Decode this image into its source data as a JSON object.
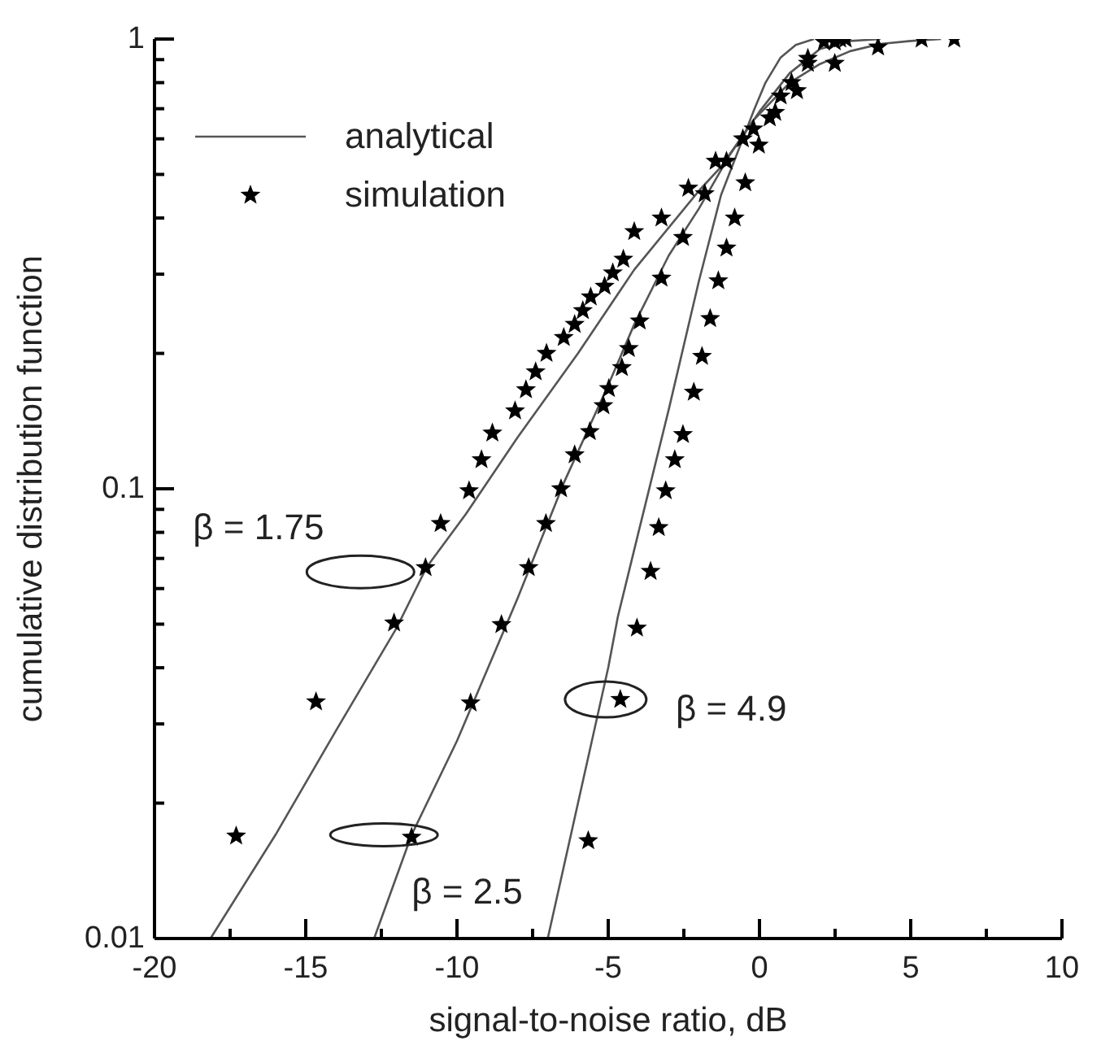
{
  "chart_data": {
    "type": "line",
    "xlabel": "signal-to-noise ratio, dB",
    "ylabel": "cumulative distribution function",
    "xlim": [
      -20,
      10
    ],
    "xticks": [
      -20,
      {
        "value": -17.5,
        "label": null
      },
      -15,
      {
        "value": -12.5,
        "label": null
      },
      -10,
      {
        "value": -7.5,
        "label": null
      },
      -5,
      {
        "value": -2.5,
        "label": null
      },
      0,
      {
        "value": 2.5,
        "label": null
      },
      5,
      {
        "value": 7.5,
        "label": null
      },
      10
    ],
    "ylim": [
      0.01,
      1
    ],
    "log": "y",
    "yticks": [
      0.01,
      {
        "value": 0.02,
        "label": null
      },
      {
        "value": 0.03,
        "label": null
      },
      {
        "value": 0.04,
        "label": null
      },
      {
        "value": 0.05,
        "label": null
      },
      {
        "value": 0.06,
        "label": null
      },
      {
        "value": 0.07,
        "label": null
      },
      {
        "value": 0.08,
        "label": null
      },
      {
        "value": 0.09,
        "label": null
      },
      0.1,
      {
        "value": 0.2,
        "label": null
      },
      {
        "value": 0.3,
        "label": null
      },
      {
        "value": 0.4,
        "label": null
      },
      {
        "value": 0.5,
        "label": null
      },
      {
        "value": 0.6,
        "label": null
      },
      {
        "value": 0.7,
        "label": null
      },
      {
        "value": 0.8,
        "label": null
      },
      {
        "value": 0.9,
        "label": null
      },
      1
    ],
    "grid": false,
    "legend": "top left",
    "annotations": [
      {
        "text": "β = 1.75",
        "x": -11.04,
        "y": 0.067
      },
      {
        "text": "β = 2.5",
        "x": -11.5,
        "y": 0.017
      },
      {
        "text": "β = 4.9",
        "x": -4.6,
        "y": 0.034
      }
    ],
    "series": [
      {
        "name": "analytical",
        "color": "#555555",
        "line_style": "solid",
        "x": [
          -18.15,
          -16,
          -14,
          -12,
          -11,
          -9.7,
          -8,
          -6,
          -4.14,
          -2,
          -1.27,
          -0.2,
          1,
          2,
          3,
          4,
          5,
          6
        ],
        "values": [
          0.01,
          0.017,
          0.029,
          0.049,
          0.067,
          0.088,
          0.13,
          0.2,
          0.307,
          0.46,
          0.52,
          0.66,
          0.8,
          0.88,
          0.94,
          0.975,
          0.99,
          1
        ]
      },
      {
        "color": "#555555",
        "line_style": "solid",
        "x": [
          -12.74,
          -11.5,
          -10,
          -8,
          -6.47,
          -5,
          -4.14,
          -3,
          -2,
          -1,
          0,
          1,
          2,
          3,
          4
        ],
        "values": [
          0.01,
          0.017,
          0.0275,
          0.057,
          0.103,
          0.17,
          0.232,
          0.33,
          0.42,
          0.55,
          0.69,
          0.84,
          0.95,
          0.99,
          1
        ]
      },
      {
        "color": "#555555",
        "line_style": "solid",
        "x": [
          -7,
          -6,
          -5,
          -4.68,
          -4,
          -3,
          -2,
          -1.27,
          -0.2,
          0.2,
          0.7,
          1.2,
          1.8
        ],
        "values": [
          0.01,
          0.02,
          0.04,
          0.052,
          0.08,
          0.15,
          0.29,
          0.45,
          0.69,
          0.8,
          0.91,
          0.97,
          1
        ]
      },
      {
        "name": "simulation",
        "type": "scatter",
        "marker": "star",
        "color": "#000000",
        "x": [
          -17.3,
          -14.66,
          -12.08,
          -11.04,
          -10.54,
          -9.6,
          -9.19,
          -8.83,
          -8.08,
          -7.72,
          -7.4,
          -7.04,
          -6.47,
          -6.11,
          -5.84,
          -5.58,
          -5.12,
          -4.85,
          -4.5,
          -4.14,
          -3.24,
          -2.35,
          -1.45,
          -0.55,
          0.34,
          1.24,
          2.49,
          3.92,
          5.36,
          6.44
        ],
        "values": [
          0.0169,
          0.0336,
          0.0503,
          0.0668,
          0.0837,
          0.099,
          0.116,
          0.133,
          0.149,
          0.166,
          0.182,
          0.2,
          0.217,
          0.232,
          0.249,
          0.267,
          0.282,
          0.302,
          0.324,
          0.373,
          0.4,
          0.466,
          0.535,
          0.6,
          0.668,
          0.768,
          0.883,
          0.96,
          1,
          1
        ]
      },
      {
        "type": "scatter",
        "marker": "star",
        "color": "#000000",
        "x": [
          -11.5,
          -9.55,
          -8.53,
          -7.63,
          -7.06,
          -6.56,
          -6.11,
          -5.61,
          -5.16,
          -4.98,
          -4.55,
          -4.32,
          -3.96,
          -3.24,
          -2.53,
          -1.81,
          -1.09,
          -0.2,
          0.7,
          1.6,
          2.49,
          2.85
        ],
        "values": [
          0.0168,
          0.0334,
          0.0499,
          0.0668,
          0.0837,
          0.1,
          0.119,
          0.134,
          0.153,
          0.167,
          0.186,
          0.205,
          0.236,
          0.294,
          0.362,
          0.453,
          0.535,
          0.631,
          0.747,
          0.883,
          0.986,
          1
        ]
      },
      {
        "type": "scatter",
        "marker": "star",
        "color": "#000000",
        "x": [
          -5.66,
          -4.6,
          -4.05,
          -3.6,
          -3.33,
          -3.1,
          -2.8,
          -2.53,
          -2.17,
          -1.9,
          -1.63,
          -1.36,
          -1.09,
          -0.82,
          -0.47,
          -0.02,
          0.52,
          1.06,
          1.6,
          2.13,
          2.67
        ],
        "values": [
          0.0165,
          0.034,
          0.049,
          0.0655,
          0.082,
          0.099,
          0.116,
          0.132,
          0.164,
          0.197,
          0.239,
          0.29,
          0.343,
          0.4,
          0.479,
          0.581,
          0.687,
          0.8,
          0.906,
          0.986,
          1
        ]
      }
    ]
  }
}
